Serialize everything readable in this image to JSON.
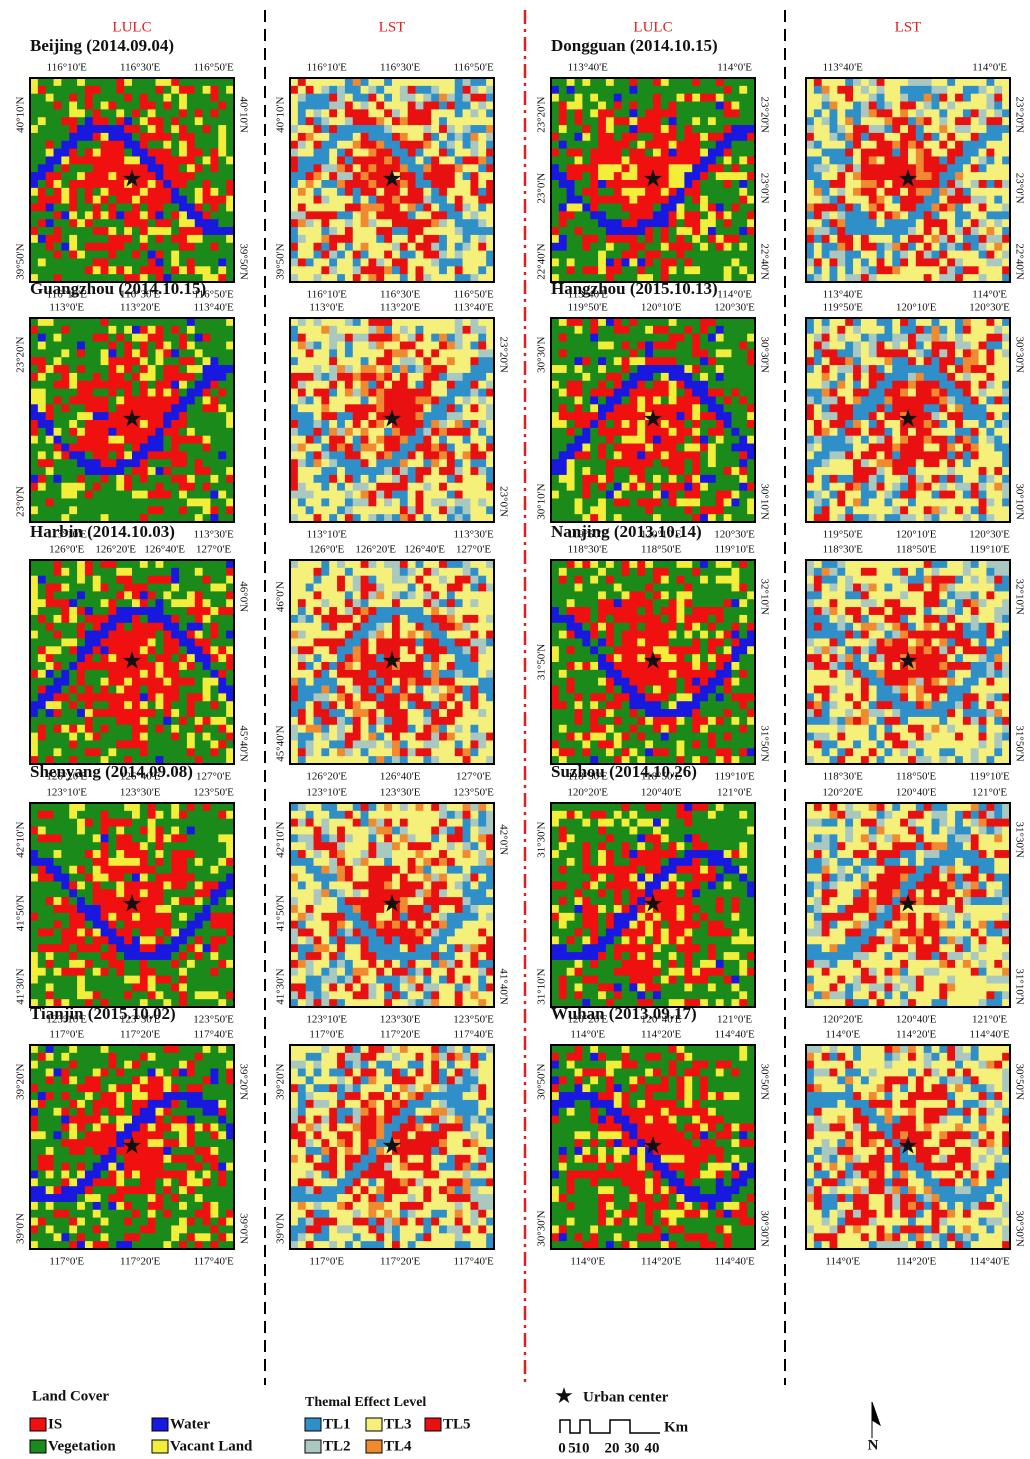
{
  "headers": [
    "LULC",
    "LST",
    "LULC",
    "LST"
  ],
  "rows": [
    [
      {
        "title": "Beijing (2014.09.04)",
        "lulc": {
          "top": [
            "116°10'E",
            "116°30'E",
            "116°50'E"
          ],
          "bottom": [
            "116°10'E",
            "116°30'E",
            "116°50'E"
          ],
          "left": [
            "40°10'N",
            "39°50'N"
          ],
          "right": [
            "40°10'N",
            "39°50'N"
          ]
        },
        "lst": {
          "top": [
            "116°10'E",
            "116°30'E",
            "116°50'E"
          ],
          "bottom": [
            "116°10'E",
            "116°30'E",
            "116°50'E"
          ],
          "left": [
            "40°10'N",
            "39°50'N"
          ],
          "right": []
        }
      },
      {
        "title": "Dongguan (2014.10.15)",
        "lulc": {
          "top": [
            "113°40'E",
            "114°0'E"
          ],
          "bottom": [
            "113°40'E",
            "114°0'E"
          ],
          "left": [
            "23°20'N",
            "23°0'N",
            "22°40'N"
          ],
          "right": [
            "23°20'N",
            "23°0'N",
            "22°40'N"
          ]
        },
        "lst": {
          "top": [
            "113°40'E",
            "114°0'E"
          ],
          "bottom": [
            "113°40'E",
            "114°0'E"
          ],
          "left": [],
          "right": [
            "23°20'N",
            "23°0'N",
            "22°40'N"
          ]
        }
      }
    ],
    [
      {
        "title": "Guangzhou (2014.10.15)",
        "lulc": {
          "top": [
            "113°0'E",
            "113°20'E",
            "113°40'E"
          ],
          "bottom": [
            "113°10'E",
            "113°30'E"
          ],
          "left": [
            "23°20'N",
            "23°0'N"
          ],
          "right": []
        },
        "lst": {
          "top": [
            "113°0'E",
            "113°20'E",
            "113°40'E"
          ],
          "bottom": [
            "113°10'E",
            "113°30'E"
          ],
          "left": [],
          "right": [
            "23°20'N",
            "23°0'N"
          ]
        }
      },
      {
        "title": "Hangzhou (2015.10.13)",
        "lulc": {
          "top": [
            "119°50'E",
            "120°10'E",
            "120°30'E"
          ],
          "bottom": [
            "119°50'E",
            "120°10'E",
            "120°30'E"
          ],
          "left": [
            "30°30'N",
            "30°10'N"
          ],
          "right": [
            "30°30'N",
            "30°10'N"
          ]
        },
        "lst": {
          "top": [
            "119°50'E",
            "120°10'E",
            "120°30'E"
          ],
          "bottom": [
            "119°50'E",
            "120°10'E",
            "120°30'E"
          ],
          "left": [],
          "right": [
            "30°30'N",
            "30°10'N"
          ]
        }
      }
    ],
    [
      {
        "title": "Harbin (2014.10.03)",
        "lulc": {
          "top": [
            "126°0'E",
            "126°20'E",
            "126°40'E",
            "127°0'E"
          ],
          "bottom": [
            "126°20'E",
            "126°40'E",
            "127°0'E"
          ],
          "left": [],
          "right": [
            "46°0'N",
            "45°40'N"
          ]
        },
        "lst": {
          "top": [
            "126°0'E",
            "126°20'E",
            "126°40'E",
            "127°0'E"
          ],
          "bottom": [
            "126°20'E",
            "126°40'E",
            "127°0'E"
          ],
          "left": [
            "46°0'N",
            "45°40'N"
          ],
          "right": []
        }
      },
      {
        "title": "Nanjing (2013.10.14)",
        "lulc": {
          "top": [
            "118°30'E",
            "118°50'E",
            "119°10'E"
          ],
          "bottom": [
            "118°30'E",
            "118°50'E",
            "119°10'E"
          ],
          "left": [
            "31°50'N"
          ],
          "right": [
            "32°10'N",
            "31°50'N"
          ]
        },
        "lst": {
          "top": [
            "118°30'E",
            "118°50'E",
            "119°10'E"
          ],
          "bottom": [
            "118°30'E",
            "118°50'E",
            "119°10'E"
          ],
          "left": [],
          "right": [
            "32°10'N",
            "31°50'N"
          ]
        }
      }
    ],
    [
      {
        "title": "Shenyang (2014.09.08)",
        "lulc": {
          "top": [
            "123°10'E",
            "123°30'E",
            "123°50'E"
          ],
          "bottom": [
            "123°10'E",
            "123°30'E",
            "123°50'E"
          ],
          "left": [
            "42°10'N",
            "41°50'N",
            "41°30'N"
          ],
          "right": []
        },
        "lst": {
          "top": [
            "123°10'E",
            "123°30'E",
            "123°50'E"
          ],
          "bottom": [
            "123°10'E",
            "123°30'E",
            "123°50'E"
          ],
          "left": [
            "42°10'N",
            "41°50'N",
            "41°30'N"
          ],
          "right": [
            "42°0'N",
            "41°40'N"
          ]
        }
      },
      {
        "title": "Suzhou (2014.10.26)",
        "lulc": {
          "top": [
            "120°20'E",
            "120°40'E",
            "121°0'E"
          ],
          "bottom": [
            "120°20'E",
            "120°40'E",
            "121°0'E"
          ],
          "left": [
            "31°30'N",
            "31°10'N"
          ],
          "right": []
        },
        "lst": {
          "top": [
            "120°20'E",
            "120°40'E",
            "121°0'E"
          ],
          "bottom": [
            "120°20'E",
            "120°40'E",
            "121°0'E"
          ],
          "left": [],
          "right": [
            "31°30'N",
            "31°10'N"
          ]
        }
      }
    ],
    [
      {
        "title": "Tianjin (2015.10.02)",
        "lulc": {
          "top": [
            "117°0'E",
            "117°20'E",
            "117°40'E"
          ],
          "bottom": [
            "117°0'E",
            "117°20'E",
            "117°40'E"
          ],
          "left": [
            "39°20'N",
            "39°0'N"
          ],
          "right": [
            "39°20'N",
            "39°0'N"
          ]
        },
        "lst": {
          "top": [
            "117°0'E",
            "117°20'E",
            "117°40'E"
          ],
          "bottom": [
            "117°0'E",
            "117°20'E",
            "117°40'E"
          ],
          "left": [
            "39°20'N",
            "39°0'N"
          ],
          "right": []
        }
      },
      {
        "title": "Wuhan (2013.09.17)",
        "lulc": {
          "top": [
            "114°0'E",
            "114°20'E",
            "114°40'E"
          ],
          "bottom": [
            "114°0'E",
            "114°20'E",
            "114°40'E"
          ],
          "left": [
            "30°50'N",
            "30°30'N"
          ],
          "right": [
            "30°50'N",
            "30°30'N"
          ]
        },
        "lst": {
          "top": [
            "114°0'E",
            "114°20'E",
            "114°40'E"
          ],
          "bottom": [
            "114°0'E",
            "114°20'E",
            "114°40'E"
          ],
          "left": [],
          "right": [
            "30°50'N",
            "30°30'N"
          ]
        }
      }
    ]
  ],
  "legend": {
    "land_cover": {
      "title": "Land Cover",
      "items": [
        "IS",
        "Water",
        "Vegetation",
        "Vacant Land"
      ]
    },
    "thermal": {
      "title": "Themal Effect Level",
      "items": [
        "TL1",
        "TL3",
        "TL5",
        "TL2",
        "TL4"
      ]
    },
    "urban_center": "Urban center",
    "scale": {
      "unit": "Km",
      "labels": [
        "0",
        "5",
        "10",
        "20",
        "30",
        "40"
      ]
    },
    "north": "N"
  }
}
